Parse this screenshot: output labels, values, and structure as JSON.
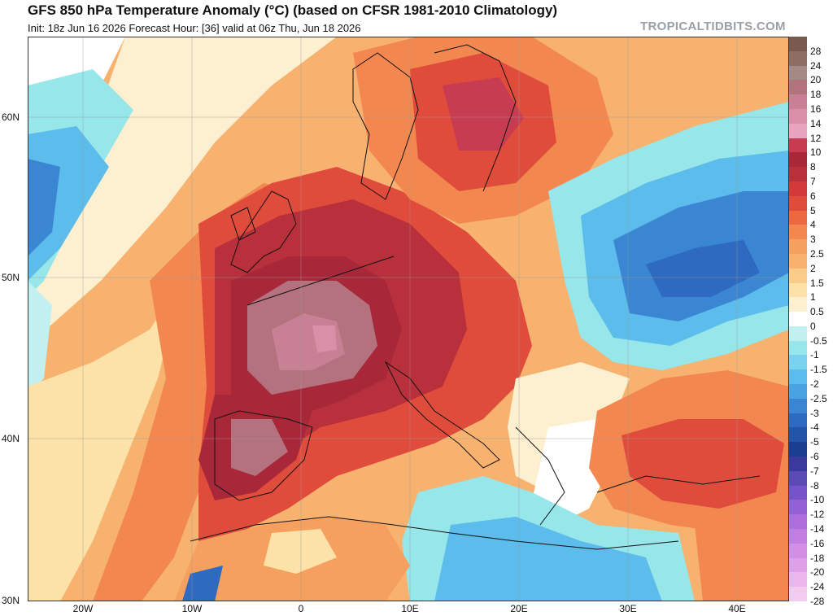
{
  "header": {
    "title": "GFS 850 hPa Temperature Anomaly (°C) (based on CFSR 1981-2010 Climatology)",
    "subtitle": "Init: 18z Jun 16 2026   Forecast Hour: [36]   valid at 06z Thu, Jun 18 2026",
    "brand": "TROPICALTIDBITS.COM"
  },
  "map": {
    "lat_labels": [
      "60N",
      "50N",
      "40N",
      "30N"
    ],
    "lon_labels": [
      "20W",
      "10W",
      "0",
      "10E",
      "20E",
      "30E",
      "40E"
    ]
  },
  "legend": {
    "levels": [
      "28",
      "24",
      "20",
      "18",
      "16",
      "14",
      "12",
      "10",
      "8",
      "7",
      "6",
      "5",
      "4",
      "3",
      "2.5",
      "2",
      "1.5",
      "1",
      "0.5",
      "0",
      "-0.5",
      "-1",
      "-1.5",
      "-2",
      "-2.5",
      "-3",
      "-4",
      "-5",
      "-6",
      "-7",
      "-8",
      "-10",
      "-12",
      "-14",
      "-16",
      "-18",
      "-20",
      "-24",
      "-28"
    ],
    "colors": [
      "#7a5a4e",
      "#8e6e64",
      "#a48a84",
      "#b4727e",
      "#c88094",
      "#d890a8",
      "#e8a4bc",
      "#c83c52",
      "#a8283a",
      "#b8303c",
      "#d23a3a",
      "#e04c3c",
      "#ec6840",
      "#f28850",
      "#f5a05e",
      "#f8b270",
      "#facc8a",
      "#fce2a8",
      "#fdf0d0",
      "#ffffff",
      "#c2f0f0",
      "#96e6ea",
      "#7ad2ee",
      "#5cbcec",
      "#4aa2e0",
      "#3a86d2",
      "#2e6ac0",
      "#2454a8",
      "#1c3e90",
      "#3a3a9c",
      "#5a4cb4",
      "#7654c8",
      "#9460d4",
      "#b06edc",
      "#c47ee2",
      "#d48ee6",
      "#e0a0e8",
      "#eab6ec",
      "#f2cbef"
    ]
  }
}
